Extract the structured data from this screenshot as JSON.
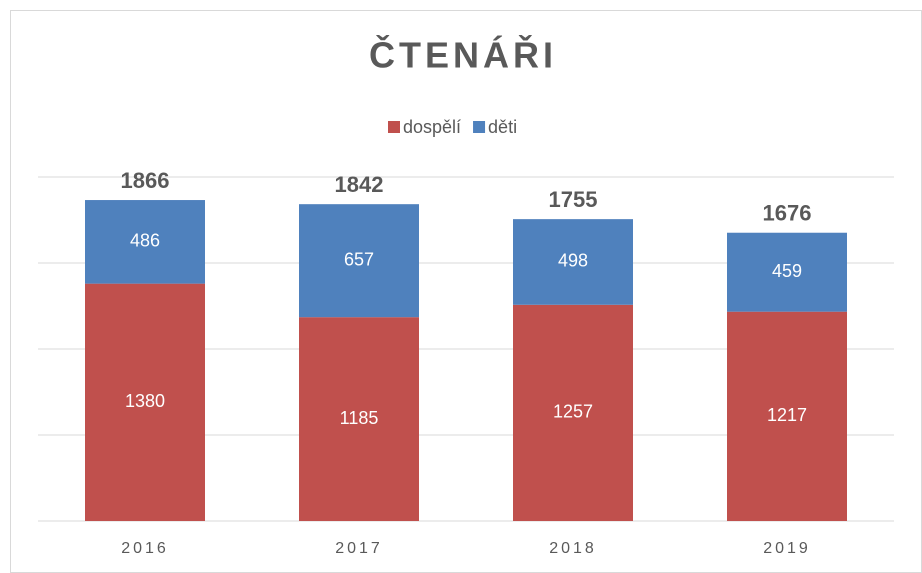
{
  "chart_data": {
    "type": "stacked_bar",
    "title": "ČTENÁŘI",
    "categories": [
      "2016",
      "2017",
      "2018",
      "2019"
    ],
    "series": [
      {
        "name": "dospělí",
        "color": "#c0504d",
        "values": [
          1380,
          1185,
          1257,
          1217
        ]
      },
      {
        "name": "děti",
        "color": "#4f81bd",
        "values": [
          486,
          657,
          498,
          459
        ]
      }
    ],
    "totals": [
      1866,
      1842,
      1755,
      1676
    ],
    "ylim": [
      0,
      2000
    ],
    "yticks": [
      0,
      500,
      1000,
      1500,
      2000
    ],
    "grid": true,
    "legend": "top"
  }
}
